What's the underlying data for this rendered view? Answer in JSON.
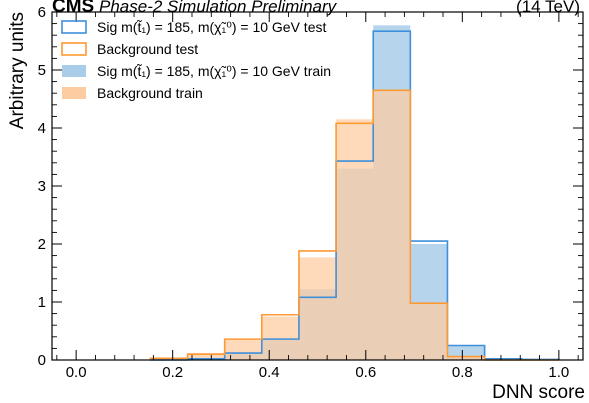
{
  "header": {
    "experiment": "CMS",
    "subtitle": "Phase-2 Simulation Preliminary",
    "lumi": "(14 TeV)"
  },
  "chart_data": {
    "type": "bar",
    "xlabel": "DNN score",
    "ylabel": "Arbitrary units",
    "xlim": [
      -0.05,
      1.05
    ],
    "ylim": [
      0,
      6
    ],
    "x_ticks": [
      0.0,
      0.2,
      0.4,
      0.6,
      0.8,
      1.0
    ],
    "x_tick_labels": [
      "0.0",
      "0.2",
      "0.4",
      "0.6",
      "0.8",
      "1.0"
    ],
    "y_ticks": [
      0,
      1,
      2,
      3,
      4,
      5,
      6
    ],
    "y_tick_labels": [
      "0",
      "1",
      "2",
      "3",
      "4",
      "5",
      "6"
    ],
    "bin_edges": [
      0.1538,
      0.2308,
      0.3077,
      0.3846,
      0.4615,
      0.5385,
      0.6154,
      0.6923,
      0.7692,
      0.8462,
      0.9231,
      1.0
    ],
    "series": [
      {
        "name": "Sig m(t̃₁) = 185, m(χ̃₁⁰) = 10 GeV test",
        "style": "step",
        "color": "#3f90da",
        "values": [
          0.0,
          0.02,
          0.12,
          0.36,
          1.08,
          3.43,
          5.67,
          2.05,
          0.25,
          0.02,
          0.01
        ]
      },
      {
        "name": "Background test",
        "style": "step",
        "color": "#ff9933",
        "values": [
          0.03,
          0.1,
          0.36,
          0.78,
          1.88,
          4.08,
          4.65,
          0.98,
          0.06,
          0.0,
          0.0
        ]
      },
      {
        "name": "Sig m(t̃₁) = 185, m(χ̃₁⁰) = 10 GeV train",
        "style": "fill",
        "color": "#a9cce8",
        "values": [
          0.0,
          0.02,
          0.12,
          0.38,
          1.22,
          3.3,
          5.77,
          2.0,
          0.24,
          0.03,
          0.01
        ]
      },
      {
        "name": "Background train",
        "style": "fill",
        "color": "#fecca1",
        "values": [
          0.03,
          0.12,
          0.36,
          0.75,
          1.77,
          4.15,
          4.65,
          0.98,
          0.06,
          0.0,
          0.0
        ]
      }
    ],
    "legend_position": "top-left",
    "grid": false
  }
}
